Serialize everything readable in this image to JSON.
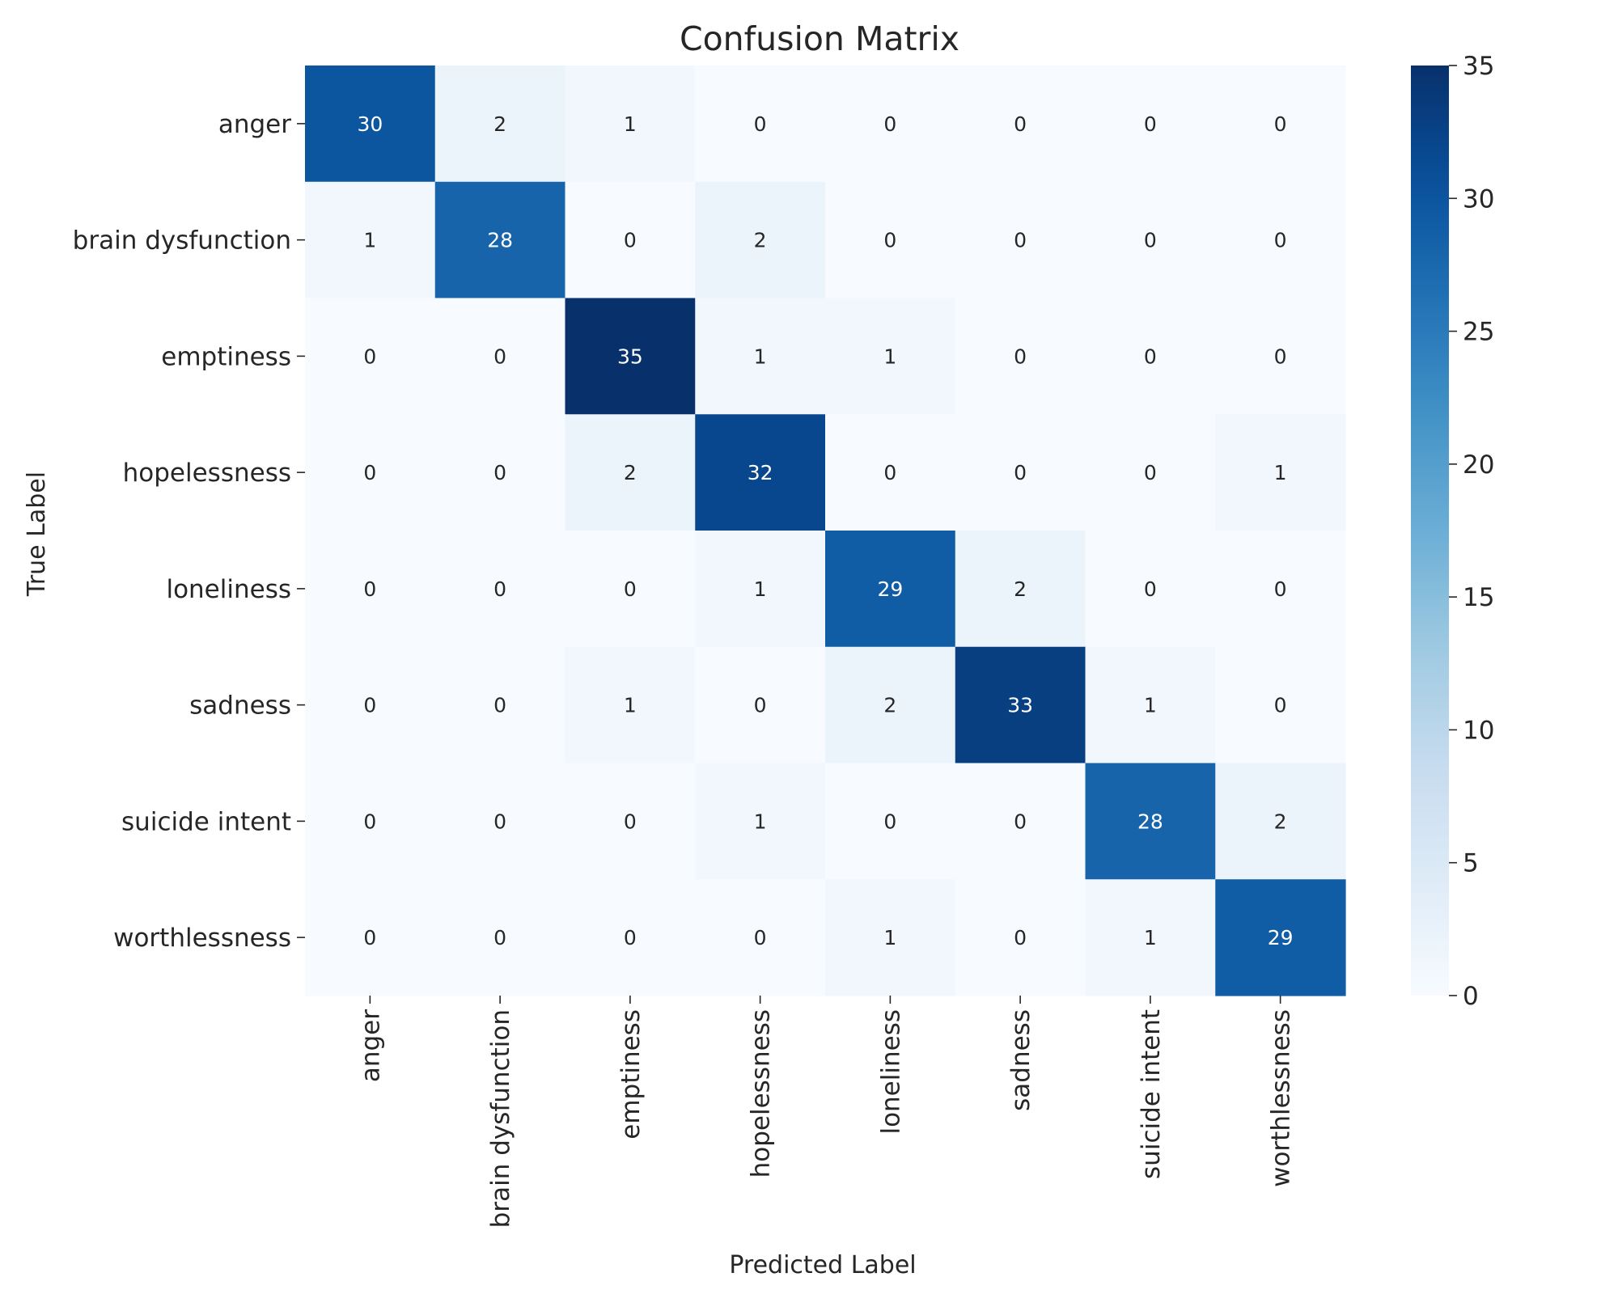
{
  "chart_data": {
    "type": "heatmap",
    "title": "Confusion Matrix",
    "xlabel": "Predicted Label",
    "ylabel": "True Label",
    "x_categories": [
      "anger",
      "brain dysfunction",
      "emptiness",
      "hopelessness",
      "loneliness",
      "sadness",
      "suicide intent",
      "worthlessness"
    ],
    "y_categories": [
      "anger",
      "brain dysfunction",
      "emptiness",
      "hopelessness",
      "loneliness",
      "sadness",
      "suicide intent",
      "worthlessness"
    ],
    "values": [
      [
        30,
        2,
        1,
        0,
        0,
        0,
        0,
        0
      ],
      [
        1,
        28,
        0,
        2,
        0,
        0,
        0,
        0
      ],
      [
        0,
        0,
        35,
        1,
        1,
        0,
        0,
        0
      ],
      [
        0,
        0,
        2,
        32,
        0,
        0,
        0,
        1
      ],
      [
        0,
        0,
        0,
        1,
        29,
        2,
        0,
        0
      ],
      [
        0,
        0,
        1,
        0,
        2,
        33,
        1,
        0
      ],
      [
        0,
        0,
        0,
        1,
        0,
        0,
        28,
        2
      ],
      [
        0,
        0,
        0,
        0,
        1,
        0,
        1,
        29
      ]
    ],
    "colorbar": {
      "min": 0,
      "max": 35,
      "ticks": [
        0,
        5,
        10,
        15,
        20,
        25,
        30,
        35
      ],
      "colormap": "Blues"
    },
    "annotations_shown": true,
    "grid": false
  }
}
